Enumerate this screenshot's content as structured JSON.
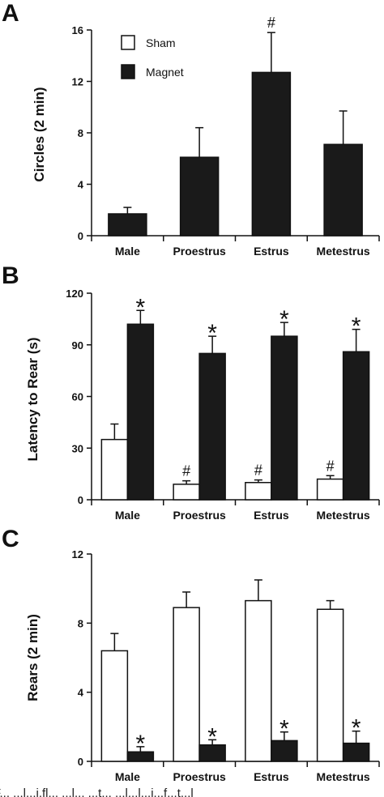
{
  "colors": {
    "sham": "#ffffff",
    "magnet": "#1a1a1a",
    "stroke": "#111111"
  },
  "legend": {
    "sham": "Sham",
    "magnet": "Magnet"
  },
  "caption_fragment": "F... ...l...i.fl... ...l... ...t... ...l...l...i...f...t...l",
  "chart_data": [
    {
      "panel": "A",
      "type": "bar",
      "ylabel": "Circles (2 min)",
      "ylim": [
        0,
        16
      ],
      "yticks": [
        0,
        4,
        8,
        12,
        16
      ],
      "categories": [
        "Male",
        "Proestrus",
        "Estrus",
        "Metestrus"
      ],
      "series": [
        {
          "name": "Magnet",
          "values": [
            1.7,
            6.1,
            12.7,
            7.1
          ],
          "errors": [
            0.5,
            2.3,
            3.1,
            2.6
          ]
        }
      ],
      "markers": [
        {
          "category": 2,
          "series": 0,
          "symbol": "#"
        }
      ]
    },
    {
      "panel": "B",
      "type": "bar",
      "ylabel": "Latency to Rear (s)",
      "ylim": [
        0,
        120
      ],
      "yticks": [
        0,
        30,
        60,
        90,
        120
      ],
      "categories": [
        "Male",
        "Proestrus",
        "Estrus",
        "Metestrus"
      ],
      "series": [
        {
          "name": "Sham",
          "values": [
            35,
            9,
            10,
            12
          ],
          "errors": [
            9,
            2,
            1.5,
            2
          ]
        },
        {
          "name": "Magnet",
          "values": [
            102,
            85,
            95,
            86
          ],
          "errors": [
            8,
            10,
            8,
            13
          ]
        }
      ],
      "markers": [
        {
          "category": 0,
          "series": 1,
          "symbol": "*"
        },
        {
          "category": 1,
          "series": 1,
          "symbol": "*"
        },
        {
          "category": 2,
          "series": 1,
          "symbol": "*"
        },
        {
          "category": 3,
          "series": 1,
          "symbol": "*"
        },
        {
          "category": 1,
          "series": 0,
          "symbol": "#"
        },
        {
          "category": 2,
          "series": 0,
          "symbol": "#"
        },
        {
          "category": 3,
          "series": 0,
          "symbol": "#"
        }
      ]
    },
    {
      "panel": "C",
      "type": "bar",
      "ylabel": "Rears (2 min)",
      "ylim": [
        0,
        12
      ],
      "yticks": [
        0,
        4,
        8,
        12
      ],
      "categories": [
        "Male",
        "Proestrus",
        "Estrus",
        "Metestrus"
      ],
      "series": [
        {
          "name": "Sham",
          "values": [
            6.4,
            8.9,
            9.3,
            8.8
          ],
          "errors": [
            1.0,
            0.9,
            1.2,
            0.5
          ]
        },
        {
          "name": "Magnet",
          "values": [
            0.55,
            0.95,
            1.2,
            1.05
          ],
          "errors": [
            0.3,
            0.3,
            0.5,
            0.7
          ]
        }
      ],
      "markers": [
        {
          "category": 0,
          "series": 1,
          "symbol": "*"
        },
        {
          "category": 1,
          "series": 1,
          "symbol": "*"
        },
        {
          "category": 2,
          "series": 1,
          "symbol": "*"
        },
        {
          "category": 3,
          "series": 1,
          "symbol": "*"
        }
      ]
    }
  ]
}
